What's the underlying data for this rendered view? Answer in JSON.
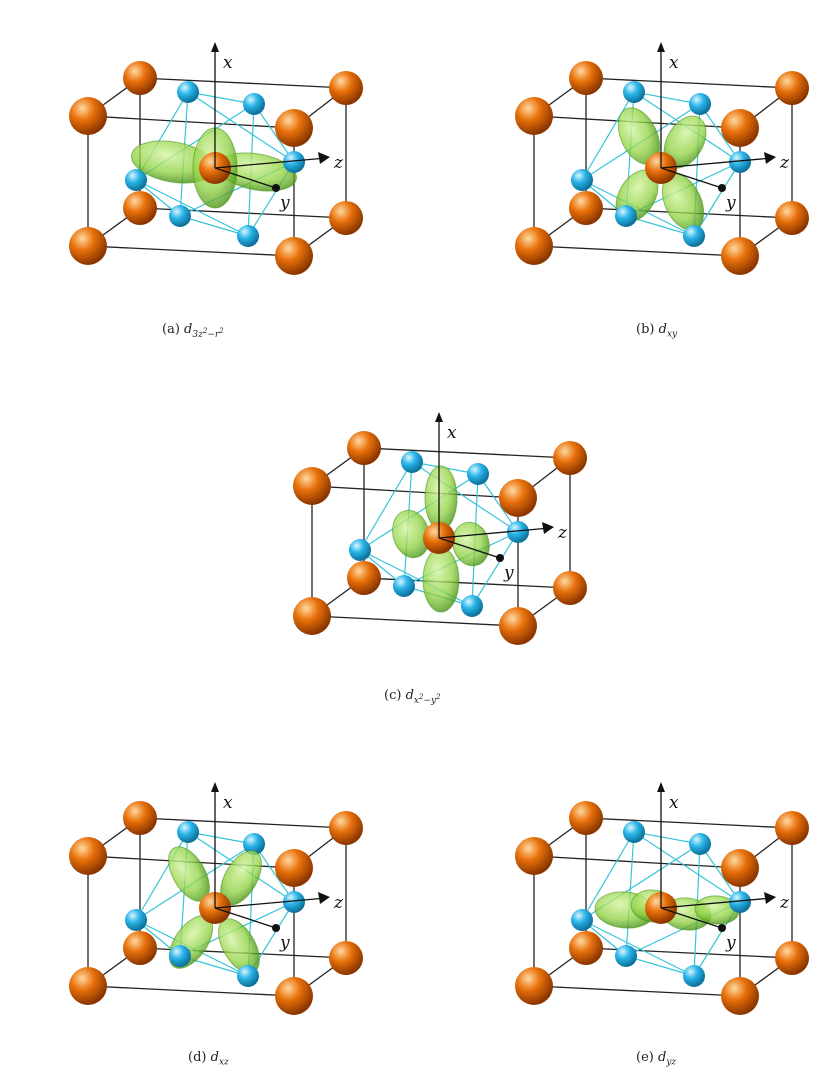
{
  "figure": {
    "panels": [
      {
        "id": "a",
        "caption_prefix": "(a)",
        "orbital_base": "d",
        "orbital_sub": "3z",
        "orbital_sub_sup1": "2",
        "orbital_sub_mid": "−r",
        "orbital_sub_sup2": "2",
        "orbital": "z2"
      },
      {
        "id": "b",
        "caption_prefix": "(b)",
        "orbital_base": "d",
        "orbital_sub": "xy",
        "orbital": "xy"
      },
      {
        "id": "c",
        "caption_prefix": "(c)",
        "orbital_base": "d",
        "orbital_sub": "x",
        "orbital_sub_sup1": "2",
        "orbital_sub_mid": "−y",
        "orbital_sub_sup2": "2",
        "orbital": "x2y2"
      },
      {
        "id": "d",
        "caption_prefix": "(d)",
        "orbital_base": "d",
        "orbital_sub": "xz",
        "orbital": "xz"
      },
      {
        "id": "e",
        "caption_prefix": "(e)",
        "orbital_base": "d",
        "orbital_sub": "yz",
        "orbital": "yz"
      }
    ],
    "axis_labels": {
      "x": "x",
      "y": "y",
      "z": "z"
    },
    "colors": {
      "corner_atom": "#e8700a",
      "face_atom": "#2ab4e8",
      "orbital_lobe": "#8fd13f",
      "cube_edge": "#222222",
      "bond_line": "#35c4d8"
    }
  }
}
